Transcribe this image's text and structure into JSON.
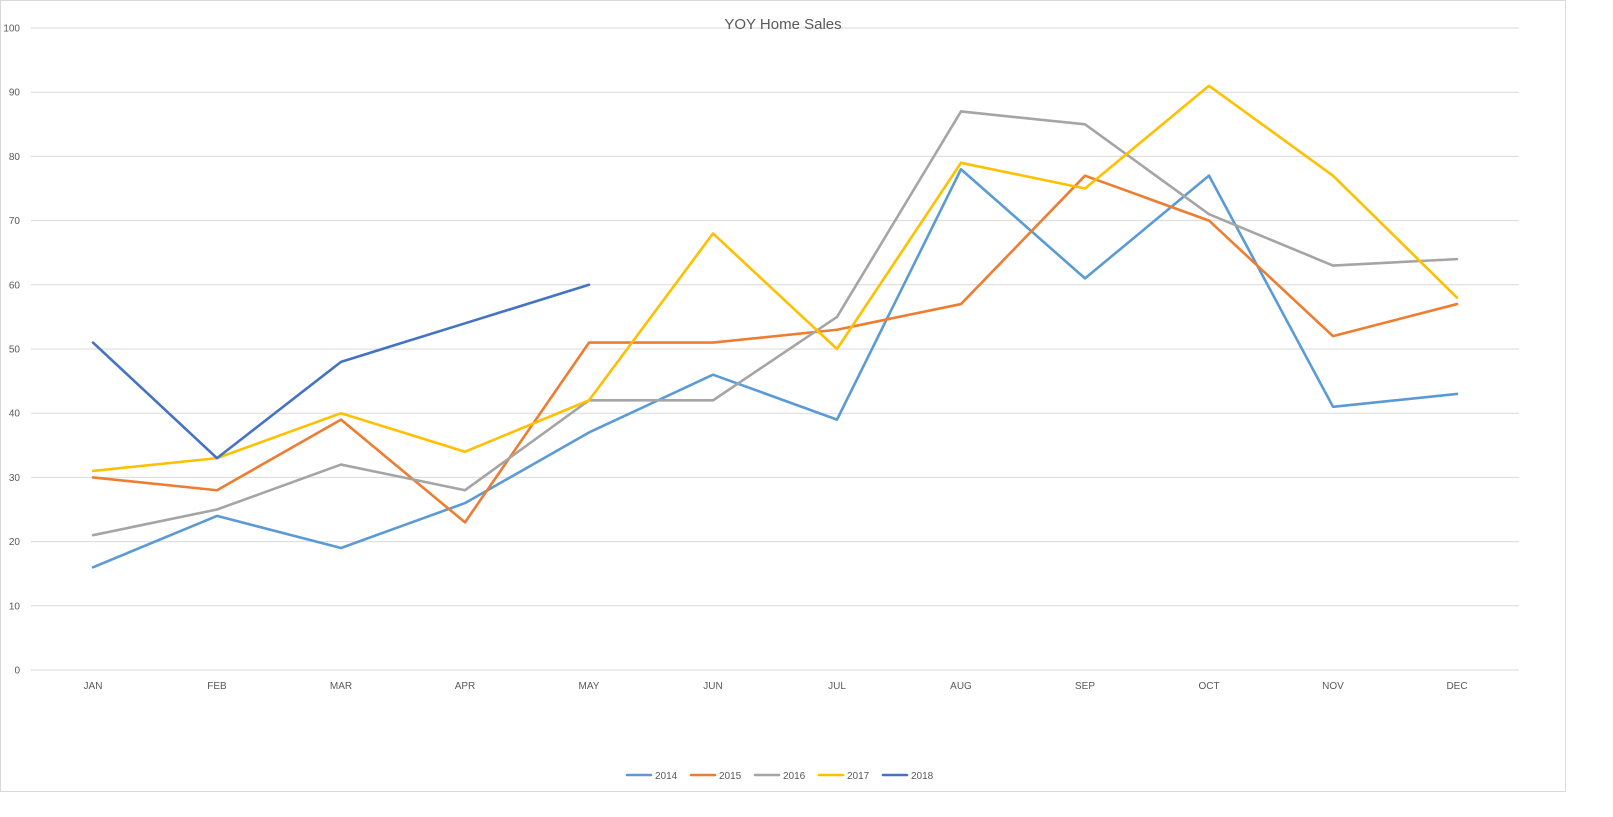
{
  "chart_data": {
    "type": "line",
    "title": "YOY Home Sales",
    "xlabel": "",
    "ylabel": "",
    "ylim": [
      0,
      100
    ],
    "yticks": [
      0,
      10,
      20,
      30,
      40,
      50,
      60,
      70,
      80,
      90,
      100
    ],
    "grid": true,
    "legend_position": "bottom",
    "categories": [
      "JAN",
      "FEB",
      "MAR",
      "APR",
      "MAY",
      "JUN",
      "JUL",
      "AUG",
      "SEP",
      "OCT",
      "NOV",
      "DEC"
    ],
    "series": [
      {
        "name": "2014",
        "color": "#5b9bd5",
        "values": [
          16,
          24,
          19,
          26,
          37,
          46,
          39,
          78,
          61,
          77,
          41,
          43
        ]
      },
      {
        "name": "2015",
        "color": "#ed7d31",
        "values": [
          30,
          28,
          39,
          23,
          51,
          51,
          53,
          57,
          77,
          70,
          52,
          57
        ]
      },
      {
        "name": "2016",
        "color": "#a5a5a5",
        "values": [
          21,
          25,
          32,
          28,
          42,
          42,
          55,
          87,
          85,
          71,
          63,
          64
        ]
      },
      {
        "name": "2017",
        "color": "#ffc000",
        "values": [
          31,
          33,
          40,
          34,
          42,
          68,
          50,
          79,
          75,
          91,
          77,
          58
        ]
      },
      {
        "name": "2018",
        "color": "#4472c4",
        "values": [
          51,
          33,
          48,
          54,
          60,
          null,
          null,
          null,
          null,
          null,
          null,
          null
        ]
      }
    ]
  }
}
